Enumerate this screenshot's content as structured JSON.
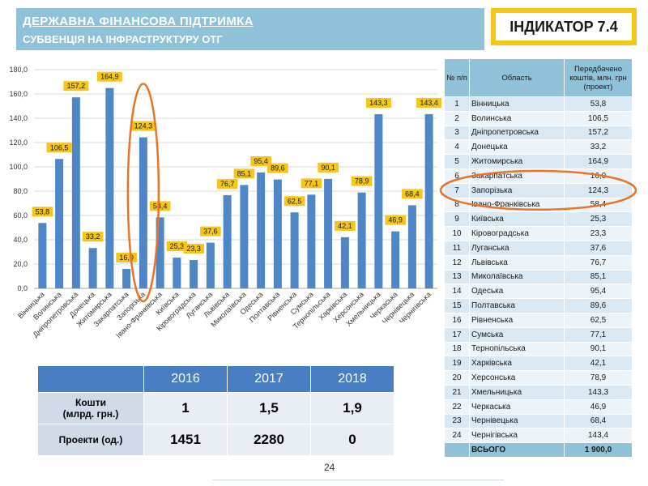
{
  "header": {
    "title": "ДЕРЖАВНА ФІНАНСОВА ПІДТРИМКА",
    "subtitle": "СУБВЕНЦІЯ НА ІНФРАСТРУКТУРУ ОТГ",
    "indicator": "ІНДИКАТОР 7.4"
  },
  "chart_data": {
    "type": "bar",
    "title": "",
    "xlabel": "",
    "ylabel": "",
    "ylim": [
      0,
      180
    ],
    "yticks": [
      "0,0",
      "20,0",
      "40,0",
      "60,0",
      "80,0",
      "100,0",
      "120,0",
      "140,0",
      "160,0",
      "180,0"
    ],
    "grid": true,
    "bar_color": "#4f86c6",
    "label_box_color": "#f5c518",
    "highlight_color": "#e8742a",
    "highlight_category": "Запорізька",
    "categories": [
      "Вінницька",
      "Волинська",
      "Дніпропетровська",
      "Донецька",
      "Житомирська",
      "Закарпатська",
      "Запорізька",
      "Івано-Франківська",
      "Київська",
      "Кіровоградська",
      "Луганська",
      "Львівська",
      "Миколаївська",
      "Одеська",
      "Полтавська",
      "Рівненська",
      "Сумська",
      "Тернопільська",
      "Харківська",
      "Херсонська",
      "Хмельницька",
      "Черкаська",
      "Чернівецька",
      "Чернігівська"
    ],
    "values": [
      53.8,
      106.5,
      157.2,
      33.2,
      164.9,
      16.0,
      124.3,
      58.4,
      25.3,
      23.3,
      37.6,
      76.7,
      85.1,
      95.4,
      89.6,
      62.5,
      77.1,
      90.1,
      42.1,
      78.9,
      143.3,
      46.9,
      68.4,
      143.4
    ],
    "value_labels": [
      "53,8",
      "106,5",
      "157,2",
      "33,2",
      "164,9",
      "16,0",
      "124,3",
      "58,4",
      "25,3",
      "23,3",
      "37,6",
      "76,7",
      "85,1",
      "95,4",
      "89,6",
      "62,5",
      "77,1",
      "90,1",
      "42,1",
      "78,9",
      "143,3",
      "46,9",
      "68,4",
      "143,4"
    ]
  },
  "summary": {
    "years": [
      "2016",
      "2017",
      "2018"
    ],
    "rows": [
      {
        "label": "Кошти\n(млрд. грн.)",
        "values": [
          "1",
          "1,5",
          "1,9"
        ]
      },
      {
        "label": "Проекти (од.)",
        "values": [
          "1451",
          "2280",
          "0"
        ]
      }
    ]
  },
  "region_table": {
    "headers": [
      "№ п/п",
      "Область",
      "Передбачено коштів, млн. грн (проект)"
    ],
    "rows": [
      [
        "1",
        "Вінницька",
        "53,8"
      ],
      [
        "2",
        "Волинська",
        "106,5"
      ],
      [
        "3",
        "Дніпропетровська",
        "157,2"
      ],
      [
        "4",
        "Донецька",
        "33,2"
      ],
      [
        "5",
        "Житомирська",
        "164,9"
      ],
      [
        "6",
        "Закарпатська",
        "16,0"
      ],
      [
        "7",
        "Запорізька",
        "124,3"
      ],
      [
        "8",
        "Івано-Франківська",
        "58,4"
      ],
      [
        "9",
        "Київська",
        "25,3"
      ],
      [
        "10",
        "Кіровоградська",
        "23,3"
      ],
      [
        "11",
        "Луганська",
        "37,6"
      ],
      [
        "12",
        "Львівська",
        "76,7"
      ],
      [
        "13",
        "Миколаївська",
        "85,1"
      ],
      [
        "14",
        "Одеська",
        "95,4"
      ],
      [
        "15",
        "Полтавська",
        "89,6"
      ],
      [
        "16",
        "Рівненська",
        "62,5"
      ],
      [
        "17",
        "Сумська",
        "77,1"
      ],
      [
        "18",
        "Тернопільська",
        "90,1"
      ],
      [
        "19",
        "Харківська",
        "42,1"
      ],
      [
        "20",
        "Херсонська",
        "78,9"
      ],
      [
        "21",
        "Хмельницька",
        "143,3"
      ],
      [
        "22",
        "Черкаська",
        "46,9"
      ],
      [
        "23",
        "Чернівецька",
        "68,4"
      ],
      [
        "24",
        "Чернігівська",
        "143,4"
      ]
    ],
    "total_label": "ВСЬОГО",
    "total_value": "1 900,0",
    "highlight_row": 6
  },
  "page_number": "24"
}
